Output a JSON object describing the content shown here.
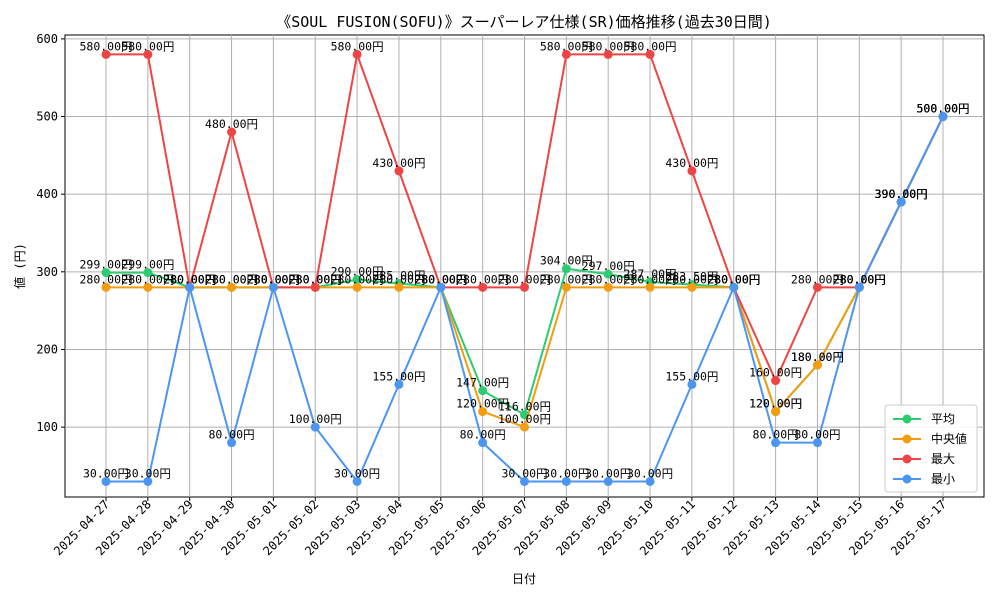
{
  "chart_data": {
    "type": "line",
    "title": "《SOUL FUSION(SOFU)》スーパーレア仕様(SR)価格推移(過去30日間)",
    "xlabel": "日付",
    "ylabel": "値 (円)",
    "ylim": [
      10,
      605
    ],
    "yticks": [
      100,
      200,
      300,
      400,
      500,
      600
    ],
    "grid": true,
    "legend_position": "lower-right",
    "label_suffix": "円",
    "categories": [
      "2025-04-27",
      "2025-04-28",
      "2025-04-29",
      "2025-04-30",
      "2025-05-01",
      "2025-05-02",
      "2025-05-03",
      "2025-05-04",
      "2025-05-05",
      "2025-05-06",
      "2025-05-07",
      "2025-05-08",
      "2025-05-09",
      "2025-05-10",
      "2025-05-11",
      "2025-05-12",
      "2025-05-13",
      "2025-05-14",
      "2025-05-15",
      "2025-05-16",
      "2025-05-17"
    ],
    "series": [
      {
        "name": "平均",
        "color": "#2ecc71",
        "values": [
          299,
          299,
          280,
          280,
          280,
          280,
          290,
          285,
          280,
          147,
          116,
          304,
          297,
          287,
          283.5,
          280,
          120,
          180,
          280,
          390,
          500
        ]
      },
      {
        "name": "中央値",
        "color": "#f39c12",
        "values": [
          280,
          280,
          280,
          280,
          280,
          280,
          280,
          280,
          280,
          120,
          100,
          280,
          280,
          280,
          280,
          280,
          120,
          180,
          280,
          390,
          500
        ]
      },
      {
        "name": "最大",
        "color": "#ef4444",
        "values": [
          580,
          580,
          280,
          480,
          280,
          280,
          580,
          430,
          280,
          280,
          280,
          580,
          580,
          580,
          430,
          280,
          160,
          280,
          280,
          390,
          500
        ]
      },
      {
        "name": "最小",
        "color": "#4b96f3",
        "values": [
          30,
          30,
          280,
          80,
          280,
          100,
          30,
          155,
          280,
          80,
          30,
          30,
          30,
          30,
          155,
          280,
          80,
          80,
          280,
          390,
          500
        ]
      }
    ]
  }
}
